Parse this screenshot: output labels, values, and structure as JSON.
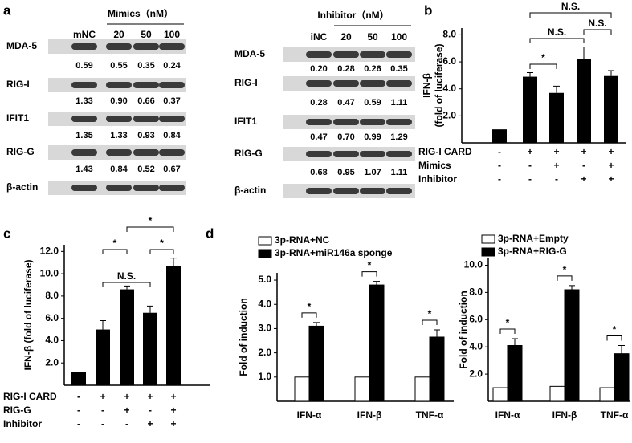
{
  "panel_labels": [
    "a",
    "b",
    "c",
    "d"
  ],
  "blots": [
    {
      "header": "Mimics（nM）",
      "lanes": [
        "mNC",
        "20",
        "50",
        "100"
      ],
      "rows": [
        {
          "label": "MDA-5",
          "values": [
            "0.59",
            "0.55",
            "0.35",
            "0.24"
          ]
        },
        {
          "label": "RIG-I",
          "values": [
            "1.33",
            "0.90",
            "0.66",
            "0.37"
          ]
        },
        {
          "label": "IFIT1",
          "values": [
            "1.35",
            "1.33",
            "0.93",
            "0.84"
          ]
        },
        {
          "label": "RIG-G",
          "values": [
            "1.43",
            "0.84",
            "0.52",
            "0.67"
          ]
        },
        {
          "label": "β-actin",
          "values": []
        }
      ]
    },
    {
      "header": "Inhibitor（nM）",
      "lanes": [
        "iNC",
        "20",
        "50",
        "100"
      ],
      "rows": [
        {
          "label": "MDA-5",
          "values": [
            "0.20",
            "0.28",
            "0.26",
            "0.35"
          ]
        },
        {
          "label": "RIG-I",
          "values": [
            "0.28",
            "0.47",
            "0.59",
            "1.11"
          ]
        },
        {
          "label": "IFIT1",
          "values": [
            "0.47",
            "0.70",
            "0.99",
            "1.29"
          ]
        },
        {
          "label": "RIG-G",
          "values": [
            "0.68",
            "0.95",
            "1.07",
            "1.11"
          ]
        },
        {
          "label": "β-actin",
          "values": []
        }
      ]
    }
  ],
  "chart_data": [
    {
      "type": "bar",
      "ylabel": [
        "IFN-β",
        "(fold of luciferase)"
      ],
      "ylim": [
        0,
        8.5
      ],
      "yticks": [
        {
          "value": 2,
          "label": "2.0"
        },
        {
          "value": 4,
          "label": "4.0"
        },
        {
          "value": 6,
          "label": "6.0"
        },
        {
          "value": 8,
          "label": "8.0"
        }
      ],
      "color": "#000000",
      "values": [
        1.0,
        4.9,
        3.7,
        6.2,
        4.95
      ],
      "errors": [
        0,
        0.3,
        0.5,
        0.9,
        0.4
      ],
      "conditions": [
        {
          "label": "RIG-I  CARD",
          "signs": [
            "-",
            "+",
            "+",
            "+",
            "+"
          ]
        },
        {
          "label": "Mimics",
          "signs": [
            "-",
            "-",
            "+",
            "-",
            "+"
          ]
        },
        {
          "label": "Inhibitor",
          "signs": [
            "-",
            "-",
            "-",
            "+",
            "+"
          ]
        }
      ],
      "annotations": [
        "*",
        "N.S.",
        "N.S.",
        "N.S."
      ]
    },
    {
      "type": "bar",
      "ylabel": "IFN-β (fold of luciferase)",
      "ylim": [
        0,
        12.6
      ],
      "yticks": [
        {
          "value": 2,
          "label": "2.0"
        },
        {
          "value": 4,
          "label": "4.0"
        },
        {
          "value": 6,
          "label": "6.0"
        },
        {
          "value": 8,
          "label": "8.0"
        },
        {
          "value": 10,
          "label": "10.0"
        },
        {
          "value": 12,
          "label": "12.0"
        }
      ],
      "color": "#000000",
      "values": [
        1.2,
        5.0,
        8.6,
        6.5,
        10.7
      ],
      "errors": [
        0,
        0.8,
        0.3,
        0.6,
        0.7
      ],
      "conditions": [
        {
          "label": "RIG-I  CARD",
          "signs": [
            "-",
            "+",
            "+",
            "+",
            "+"
          ]
        },
        {
          "label": "RIG-G",
          "signs": [
            "-",
            "-",
            "+",
            "-",
            "+"
          ]
        },
        {
          "label": "Inhibitor",
          "signs": [
            "-",
            "-",
            "-",
            "+",
            "+"
          ]
        }
      ],
      "annotations": [
        "*",
        "N.S.",
        "*",
        "*"
      ]
    },
    {
      "type": "grouped_bar",
      "ylabel": "Fold of  induction",
      "ylim": [
        0,
        5.3
      ],
      "yticks": [
        {
          "value": 1,
          "label": "1.0"
        },
        {
          "value": 2,
          "label": "2.0"
        },
        {
          "value": 3,
          "label": "3.0"
        },
        {
          "value": 4,
          "label": "4.0"
        },
        {
          "value": 5,
          "label": "5.0"
        }
      ],
      "categories": [
        "IFN-α",
        "IFN-β",
        "TNF-α"
      ],
      "series": [
        {
          "name": "3p-RNA+NC",
          "color": "#ffffff",
          "values": [
            1,
            1,
            1
          ],
          "errors": [
            0,
            0,
            0
          ]
        },
        {
          "name": "3p-RNA+miR146a sponge",
          "color": "#000000",
          "values": [
            3.1,
            4.8,
            2.65
          ],
          "errors": [
            0.15,
            0.15,
            0.3
          ]
        }
      ],
      "annotations": [
        "*",
        "*",
        "*"
      ]
    },
    {
      "type": "grouped_bar",
      "ylabel": "Fold of  induction",
      "ylim": [
        0,
        10.5
      ],
      "yticks": [
        {
          "value": 2,
          "label": "2.0"
        },
        {
          "value": 4,
          "label": "4.0"
        },
        {
          "value": 6,
          "label": "6.0"
        },
        {
          "value": 8,
          "label": "8.0"
        },
        {
          "value": 10,
          "label": "10.0"
        }
      ],
      "categories": [
        "IFN-α",
        "IFN-β",
        "TNF-α"
      ],
      "series": [
        {
          "name": "3p-RNA+Empty",
          "color": "#ffffff",
          "values": [
            1,
            1.1,
            1
          ],
          "errors": [
            0,
            0,
            0
          ]
        },
        {
          "name": "3p-RNA+RIG-G",
          "color": "#000000",
          "values": [
            4.1,
            8.2,
            3.5
          ],
          "errors": [
            0.5,
            0.3,
            0.6
          ]
        }
      ],
      "annotations": [
        "*",
        "*",
        "*"
      ]
    }
  ]
}
